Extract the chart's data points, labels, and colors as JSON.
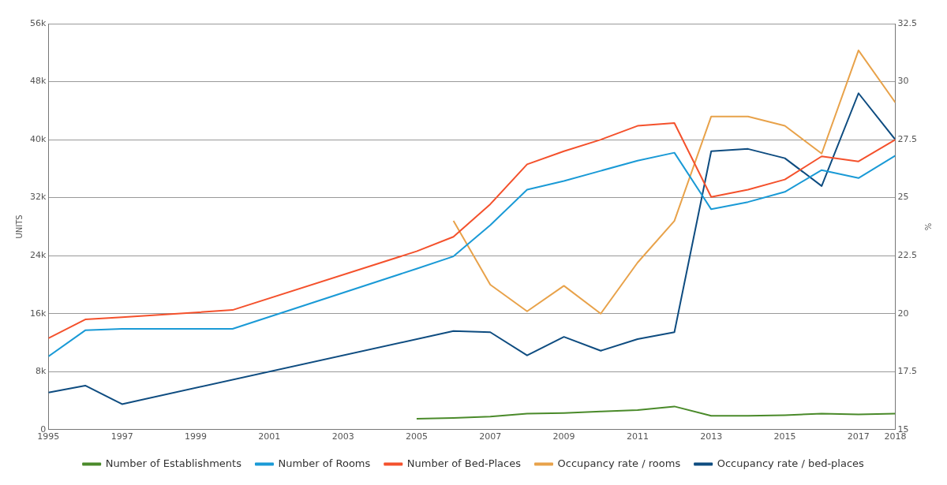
{
  "chart_data": {
    "type": "line",
    "ylabel": "UNITS",
    "y2label": "%",
    "x": [
      1995,
      1996,
      1997,
      1998,
      1999,
      2000,
      2001,
      2002,
      2003,
      2004,
      2005,
      2006,
      2007,
      2008,
      2009,
      2010,
      2011,
      2012,
      2013,
      2014,
      2015,
      2016,
      2017,
      2018
    ],
    "series": [
      {
        "name": "Number of Establishments",
        "color": "#4a8a2a",
        "values": [
          null,
          null,
          null,
          null,
          null,
          null,
          null,
          null,
          null,
          null,
          1500,
          1600,
          1800,
          2200,
          2300,
          2500,
          2700,
          3200,
          1900,
          1900,
          2000,
          2200,
          2100,
          2200
        ]
      },
      {
        "name": "Number of Rooms",
        "color": "#1a9ad6",
        "values": [
          10100,
          13700,
          13900,
          null,
          null,
          13900,
          null,
          null,
          null,
          null,
          22200,
          23900,
          28200,
          33100,
          34300,
          35700,
          37100,
          38200,
          30400,
          31400,
          32800,
          35800,
          34700,
          37800
        ]
      },
      {
        "name": "Number of Bed-Places",
        "color": "#f4512c",
        "values": [
          12600,
          15200,
          15500,
          null,
          null,
          16500,
          null,
          null,
          null,
          null,
          24600,
          26600,
          31100,
          36600,
          38400,
          40000,
          41900,
          42300,
          32100,
          33100,
          34500,
          37700,
          37000,
          40000
        ]
      },
      {
        "name": "Occupancy rate / rooms",
        "color": "#e8a24a",
        "axis": "y2",
        "values": [
          null,
          null,
          null,
          null,
          null,
          null,
          null,
          null,
          null,
          null,
          null,
          24.0,
          21.25,
          20.1,
          21.2,
          20.0,
          22.2,
          24.0,
          28.5,
          28.5,
          28.1,
          26.9,
          31.35,
          29.1
        ]
      },
      {
        "name": "Occupancy rate / bed-places",
        "color": "#0e4c80",
        "axis": "y2",
        "values": [
          16.6,
          16.9,
          16.1,
          null,
          null,
          null,
          null,
          null,
          null,
          null,
          null,
          19.25,
          19.2,
          18.2,
          19.0,
          18.4,
          18.9,
          19.2,
          27.0,
          27.1,
          26.7,
          25.5,
          29.5,
          27.5
        ]
      }
    ],
    "xlim": [
      1995,
      2018
    ],
    "xticks": [
      1995,
      1997,
      1999,
      2001,
      2003,
      2005,
      2007,
      2009,
      2011,
      2013,
      2015,
      2017,
      2018
    ],
    "ylim": [
      0,
      56000
    ],
    "yticks": [
      0,
      {
        "value": 8000,
        "label": "8k"
      },
      {
        "value": 16000,
        "label": "16k"
      },
      {
        "value": 24000,
        "label": "24k"
      },
      {
        "value": 32000,
        "label": "32k"
      },
      {
        "value": 40000,
        "label": "40k"
      },
      {
        "value": 48000,
        "label": "48k"
      },
      {
        "value": 56000,
        "label": "56k"
      }
    ],
    "y2lim": [
      15,
      32.5
    ],
    "y2ticks": [
      15,
      17.5,
      20,
      22.5,
      25,
      27.5,
      30,
      32.5
    ],
    "grid": "y",
    "legend": "bottom",
    "marker": "none",
    "line_style": "solid"
  }
}
